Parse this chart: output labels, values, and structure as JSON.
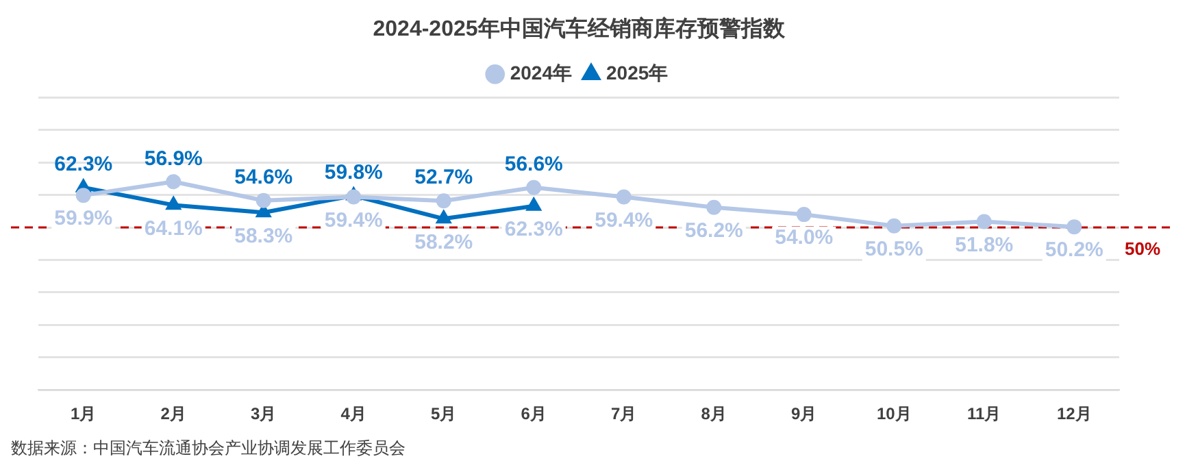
{
  "chart_data": {
    "type": "line",
    "title": "2024-2025年中国汽车经销商库存预警指数",
    "categories": [
      "1月",
      "2月",
      "3月",
      "4月",
      "5月",
      "6月",
      "7月",
      "8月",
      "9月",
      "10月",
      "11月",
      "12月"
    ],
    "series": [
      {
        "name": "2024年",
        "color": "#b4c7e7",
        "marker": "circle",
        "values": [
          59.9,
          64.1,
          58.3,
          59.4,
          58.2,
          62.3,
          59.4,
          56.2,
          54.0,
          50.5,
          51.8,
          50.2
        ],
        "value_labels": [
          "59.9%",
          "64.1%",
          "58.3%",
          "59.4%",
          "58.2%",
          "62.3%",
          "59.4%",
          "56.2%",
          "54.0%",
          "50.5%",
          "51.8%",
          "50.2%"
        ]
      },
      {
        "name": "2025年",
        "color": "#0070c0",
        "marker": "triangle",
        "values": [
          62.3,
          56.9,
          54.6,
          59.8,
          52.7,
          56.6,
          null,
          null,
          null,
          null,
          null,
          null
        ],
        "value_labels": [
          "62.3%",
          "56.9%",
          "54.6%",
          "59.8%",
          "52.7%",
          "56.6%",
          null,
          null,
          null,
          null,
          null,
          null
        ]
      }
    ],
    "ylim": [
      0,
      90
    ],
    "yticks": [
      {
        "value": 0,
        "label": null
      },
      {
        "value": 10,
        "label": null
      },
      {
        "value": 20,
        "label": null
      },
      {
        "value": 30,
        "label": null
      },
      {
        "value": 40,
        "label": null
      },
      {
        "value": 50,
        "label": null
      },
      {
        "value": 60,
        "label": null
      },
      {
        "value": 70,
        "label": null
      },
      {
        "value": 80,
        "label": null
      },
      {
        "value": 90,
        "label": null
      }
    ],
    "tick_labels": "x",
    "grid": "y",
    "legend": "top",
    "line_style": "solid",
    "ref_lines": [
      {
        "axis": "y",
        "value": 50,
        "label": "50%",
        "color": "#c00000",
        "line_style": "dashed"
      }
    ],
    "annotations": [
      "数据来源：中国汽车流通协会产业协调发展工作委员会"
    ]
  }
}
